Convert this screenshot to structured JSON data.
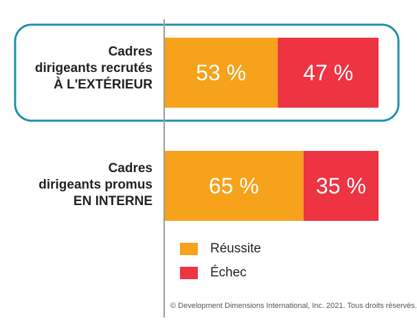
{
  "chart_data": {
    "type": "bar",
    "stacked": true,
    "orientation": "horizontal",
    "categories": [
      [
        "Cadres",
        "dirigeants recrutés",
        "À L'EXTÉRIEUR"
      ],
      [
        "Cadres",
        "dirigeants promus",
        "EN INTERNE"
      ]
    ],
    "series": [
      {
        "name": "Réussite",
        "values": [
          53,
          65
        ],
        "color": "#F7A21B",
        "labels": [
          "53 %",
          "65 %"
        ]
      },
      {
        "name": "Échec",
        "values": [
          47,
          35
        ],
        "color": "#EE3342",
        "labels": [
          "47 %",
          "35 %"
        ]
      }
    ],
    "xlim": [
      0,
      100
    ],
    "highlight_category": 0,
    "highlight_color": "#1E8FAE",
    "legend_position": "bottom",
    "grid": false
  },
  "footnote": "© Development Dimensions International, Inc. 2021. Tous droits réservés."
}
